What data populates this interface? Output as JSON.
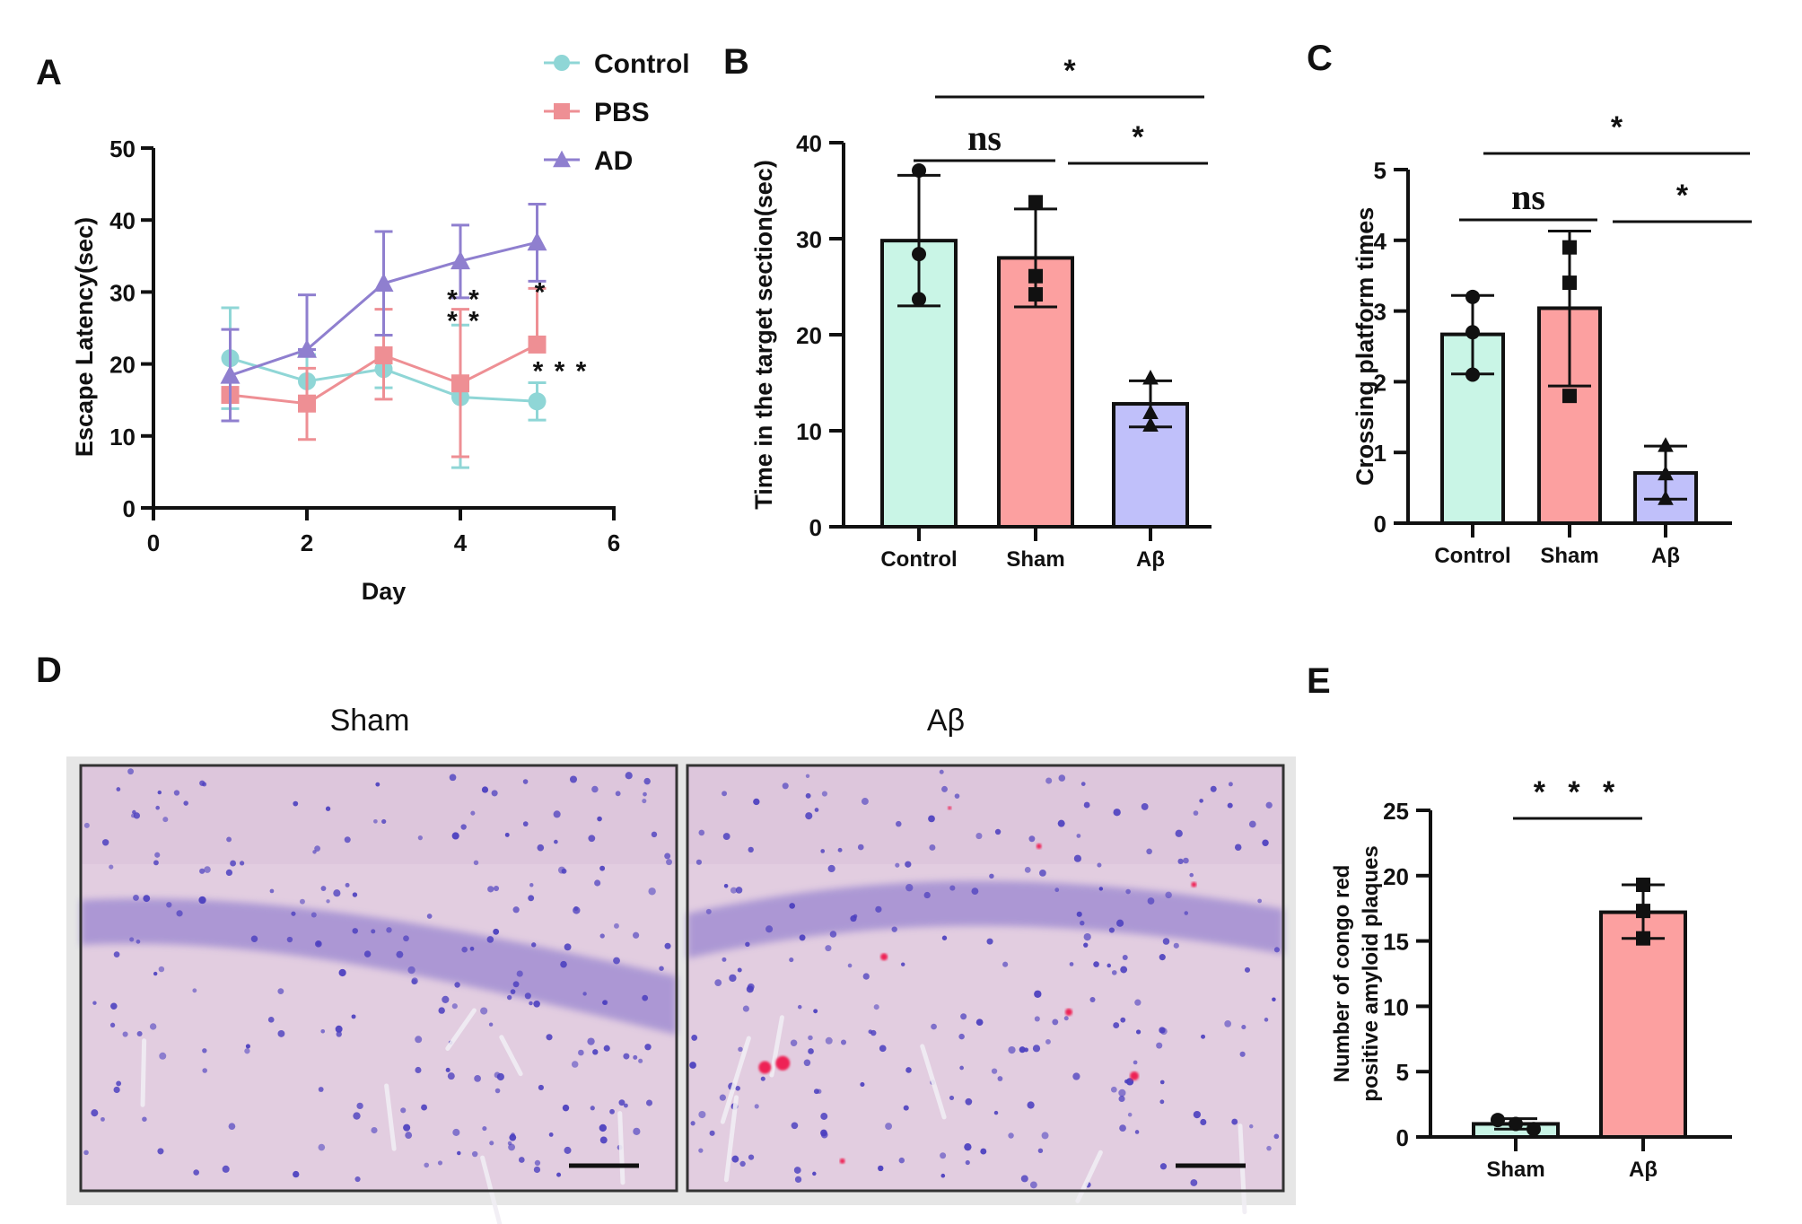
{
  "figure": {
    "panels": {
      "A": "A",
      "B": "B",
      "C": "C",
      "D": "D",
      "E": "E"
    },
    "colors": {
      "control": "#8fd6d6",
      "pbs": "#ee8f94",
      "ad": "#8f7fcf",
      "bar_control": "#c9f5e6",
      "bar_sham": "#fca0a0",
      "bar_abeta": "#c0c0fa",
      "stain_bg": "#e2cde0",
      "nuclei": "#4b3fbf",
      "plaque": "#ee2255"
    },
    "histology": {
      "titles": [
        "Sham",
        "Aβ"
      ],
      "description": [
        "Hippocampal section stained with Congo red (Sham)",
        "Hippocampal section stained with Congo red (Aβ) showing red amyloid plaques"
      ],
      "scale_bar": true
    }
  },
  "chart_data": [
    {
      "id": "A",
      "type": "line",
      "title": "",
      "xlabel": "Day",
      "ylabel": "Escape Latency(sec)",
      "xlim": [
        0,
        6
      ],
      "ylim": [
        0,
        50
      ],
      "xticks": [
        0,
        2,
        4,
        6
      ],
      "yticks": [
        0,
        10,
        20,
        30,
        40,
        50
      ],
      "legend": {
        "placement": "top-right",
        "entries": [
          "Control",
          "PBS",
          "AD"
        ]
      },
      "x": [
        1,
        2,
        3,
        4,
        5
      ],
      "series": [
        {
          "name": "Control",
          "marker": "circle",
          "values": [
            20.8,
            17.6,
            19.3,
            15.4,
            14.8
          ],
          "err_low": [
            13.8,
            14.2,
            16.7,
            5.6,
            12.2
          ],
          "err_high": [
            27.8,
            21.3,
            22.0,
            25.4,
            17.4
          ]
        },
        {
          "name": "PBS",
          "marker": "square",
          "values": [
            15.7,
            14.5,
            21.2,
            17.3,
            22.7
          ],
          "err_low": [
            15.7,
            9.5,
            15.1,
            7.1,
            22.7
          ],
          "err_high": [
            15.7,
            19.4,
            27.6,
            27.6,
            30.5
          ]
        },
        {
          "name": "AD",
          "marker": "triangle",
          "values": [
            18.4,
            22.0,
            31.2,
            34.3,
            36.9
          ],
          "err_low": [
            12.1,
            22.0,
            24.0,
            29.2,
            31.5
          ],
          "err_high": [
            24.8,
            29.6,
            38.4,
            39.3,
            42.2
          ]
        }
      ],
      "annotations": [
        {
          "text": "* *",
          "x": 4,
          "y": 29.5
        },
        {
          "text": "* *",
          "x": 4,
          "y": 26.5
        },
        {
          "text": "*",
          "x": 5,
          "y": 30.5
        },
        {
          "text": "* * *",
          "x": 5,
          "y": 19.5
        }
      ]
    },
    {
      "id": "B",
      "type": "bar",
      "title": "",
      "xlabel": "",
      "ylabel": "Time in the target section(sec)",
      "ylim": [
        0,
        40
      ],
      "yticks": [
        0,
        10,
        20,
        30,
        40
      ],
      "categories": [
        "Control",
        "Sham",
        "Aβ"
      ],
      "values": [
        29.8,
        28.0,
        12.8
      ],
      "err_low": [
        23.0,
        22.9,
        10.4
      ],
      "err_high": [
        36.6,
        33.1,
        15.2
      ],
      "points": [
        [
          37.1,
          28.4,
          23.7
        ],
        [
          33.8,
          26.1,
          24.2
        ],
        [
          15.5,
          11.9,
          10.6
        ]
      ],
      "point_markers": [
        "circle",
        "square",
        "triangle"
      ],
      "significance": [
        {
          "from": 0,
          "to": 1,
          "label": "ns",
          "level": 1
        },
        {
          "from": 1,
          "to": 2,
          "label": "*",
          "level": 1
        },
        {
          "from": 0.15,
          "to": 2.5,
          "label": "*",
          "level": 2
        }
      ]
    },
    {
      "id": "C",
      "type": "bar",
      "title": "",
      "xlabel": "",
      "ylabel": "Crossing platform times",
      "ylim": [
        0,
        5
      ],
      "yticks": [
        0,
        1,
        2,
        3,
        4,
        5
      ],
      "categories": [
        "Control",
        "Sham",
        "Aβ"
      ],
      "values": [
        2.67,
        3.04,
        0.71
      ],
      "err_low": [
        2.11,
        1.94,
        0.34
      ],
      "err_high": [
        3.22,
        4.13,
        1.09
      ],
      "points": [
        [
          3.2,
          2.7,
          2.1
        ],
        [
          3.9,
          3.4,
          1.8
        ],
        [
          1.1,
          0.7,
          0.35
        ]
      ],
      "point_markers": [
        "circle",
        "square",
        "triangle"
      ],
      "significance": [
        {
          "from": 0,
          "to": 1,
          "label": "ns",
          "level": 1
        },
        {
          "from": 1,
          "to": 2,
          "label": "*",
          "level": 1
        },
        {
          "from": 0,
          "to": 2,
          "label": "*",
          "level": 2
        }
      ]
    },
    {
      "id": "E",
      "type": "bar",
      "title": "",
      "xlabel": "",
      "ylabel": "Number of congo red positive amyloid plaques",
      "ylabel_lines": [
        "Number of congo red",
        "positive amyloid plaques"
      ],
      "ylim": [
        0,
        25
      ],
      "yticks": [
        0,
        5,
        10,
        15,
        20,
        25
      ],
      "categories": [
        "Sham",
        "Aβ"
      ],
      "values": [
        1.0,
        17.2
      ],
      "err_low": [
        0.6,
        15.2
      ],
      "err_high": [
        1.4,
        19.3
      ],
      "points": [
        [
          1.3,
          1.0,
          0.6
        ],
        [
          19.3,
          17.3,
          15.2
        ]
      ],
      "point_markers": [
        "circle",
        "square"
      ],
      "significance": [
        {
          "from": 0,
          "to": 1,
          "label": "* * *",
          "level": 1
        }
      ]
    }
  ]
}
